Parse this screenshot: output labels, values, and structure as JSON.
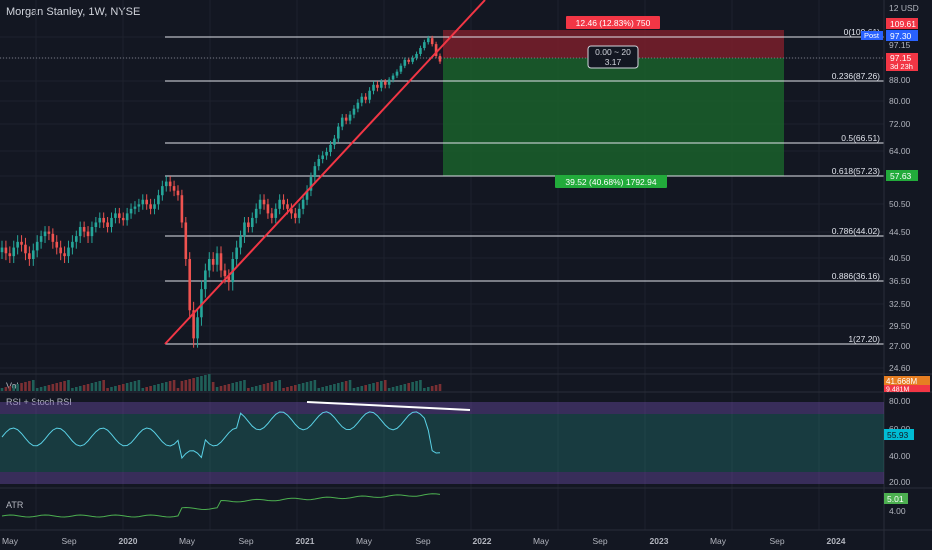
{
  "header": {
    "title": "Morgan Stanley, 1W, NYSE",
    "currency": "USD"
  },
  "panes": {
    "volume": "Vol",
    "rsi": "RSI + Stoch RSI",
    "atr": "ATR"
  },
  "chart_data": {
    "type": "candlestick",
    "price_axis_ticks": [
      12,
      109.61,
      97.3,
      97.15,
      88.0,
      80.0,
      72.0,
      64.0,
      57.63,
      50.5,
      44.5,
      40.5,
      36.5,
      32.5,
      29.5,
      27.0,
      24.6
    ],
    "time_axis": [
      "May",
      "Sep",
      "2020",
      "May",
      "Sep",
      "2021",
      "May",
      "Sep",
      "2022",
      "May",
      "Sep",
      "2023",
      "May",
      "Sep",
      "2024"
    ],
    "fib_levels": [
      {
        "label": "0(109.61)",
        "value": 109.61
      },
      {
        "label": "0.236(87.26)",
        "value": 87.26
      },
      {
        "label": "0.5(66.51)",
        "value": 66.51
      },
      {
        "label": "0.618(57.23)",
        "value": 57.23
      },
      {
        "label": "0.786(44.02)",
        "value": 44.02
      },
      {
        "label": "0.886(36.16)",
        "value": 36.16
      },
      {
        "label": "1(27.20)",
        "value": 27.2
      }
    ],
    "price_labels": {
      "target": "109.61",
      "post_label": "Post",
      "post": "97.30",
      "last": "97.15",
      "last_sub": "3d 23h",
      "stop": "57.63"
    },
    "position": {
      "risk_label": "12.46 (12.83%) 750",
      "reward_label": "39.52 (40.68%) 1792.94",
      "center_top": "0.00 ~ 20",
      "center_bottom": "3.17"
    },
    "volume": {
      "labels": [
        "41.668M",
        "9.481M"
      ]
    },
    "rsi": {
      "ticks": [
        "80.00",
        "60.00",
        "40.00",
        "20.00"
      ],
      "value": "55.93"
    },
    "atr": {
      "ticks": [
        "4.00"
      ],
      "value": "5.01"
    },
    "closes": [
      42,
      41,
      40.5,
      42,
      43,
      42.5,
      41,
      40,
      41.5,
      43,
      44,
      45,
      44.5,
      43,
      42,
      41,
      40.5,
      42,
      43,
      44,
      46,
      45,
      44,
      46,
      47,
      48,
      47,
      46,
      48,
      49,
      48,
      47.5,
      49,
      50,
      50.5,
      51,
      52,
      51,
      50,
      51,
      53,
      55,
      56,
      55,
      54,
      53,
      47,
      40,
      32,
      28,
      31,
      35,
      38,
      40,
      39,
      41,
      38,
      37,
      36,
      40,
      42,
      44,
      47,
      46,
      48,
      50,
      52,
      51,
      49,
      48,
      50,
      52,
      51,
      50,
      49,
      48,
      50,
      52,
      54,
      57,
      60,
      62,
      63,
      64,
      66,
      68,
      72,
      75,
      74,
      76,
      78,
      80,
      82,
      81,
      84,
      86,
      85,
      87,
      86,
      88,
      90,
      92,
      95,
      98,
      97,
      99,
      101,
      104,
      107,
      109,
      106,
      100,
      97.15
    ]
  }
}
